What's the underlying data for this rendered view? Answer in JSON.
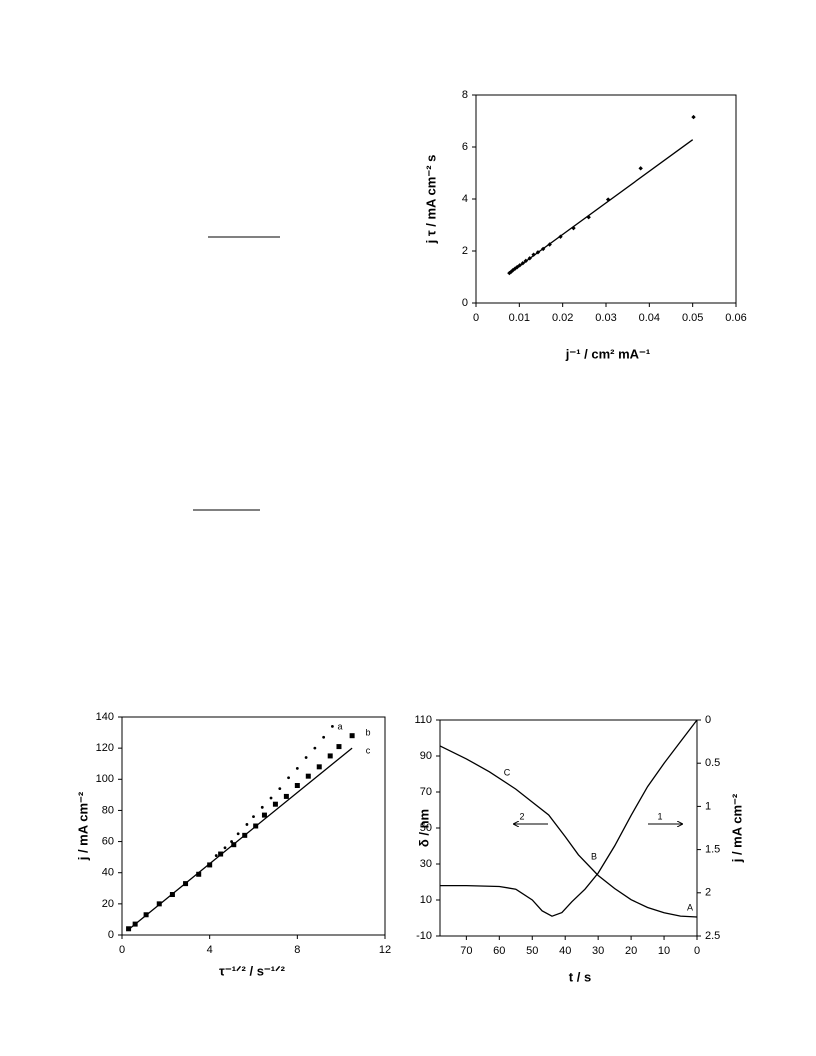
{
  "chart_data": [
    {
      "type": "scatter",
      "xlabel": "j⁻¹  /  cm² mA⁻¹",
      "ylabel": "j τ  /  mA cm⁻² s",
      "xlim": [
        0,
        0.06
      ],
      "ylim": [
        0,
        8
      ],
      "xticks": [
        0,
        0.01,
        0.02,
        0.03,
        0.04,
        0.05,
        0.06
      ],
      "yticks": [
        0,
        2,
        4,
        6,
        8
      ],
      "series": [
        {
          "marker": "diamond",
          "color": "#000000",
          "x": [
            0.0077,
            0.0081,
            0.0085,
            0.009,
            0.0095,
            0.0101,
            0.0108,
            0.0115,
            0.0124,
            0.0133,
            0.0143,
            0.0155,
            0.017,
            0.0195,
            0.0225,
            0.026,
            0.0305,
            0.038,
            0.0502
          ],
          "values": [
            1.15,
            1.2,
            1.26,
            1.32,
            1.38,
            1.45,
            1.53,
            1.62,
            1.72,
            1.86,
            1.95,
            2.08,
            2.25,
            2.55,
            2.88,
            3.3,
            3.98,
            5.18,
            7.15
          ]
        },
        {
          "marker": "line",
          "color": "#000000",
          "x": [
            0.0075,
            0.05
          ],
          "values": [
            1.12,
            6.28
          ]
        }
      ]
    },
    {
      "type": "scatter",
      "xlabel": "τ⁻¹ᐟ²  /  s⁻¹ᐟ²",
      "ylabel": "j  /  mA cm⁻²",
      "xlim": [
        0,
        12
      ],
      "ylim": [
        0,
        140
      ],
      "xticks": [
        0,
        4,
        8,
        12
      ],
      "yticks": [
        0,
        20,
        40,
        60,
        80,
        100,
        120,
        140
      ],
      "series": [
        {
          "name": "a",
          "marker": "dot",
          "color": "#000000",
          "x": [
            0.3,
            0.6,
            1.1,
            1.7,
            2.3,
            2.9,
            3.5,
            4,
            4.3,
            4.7,
            5,
            5.3,
            5.7,
            6,
            6.4,
            6.8,
            7.2,
            7.6,
            8,
            8.4,
            8.8,
            9.2,
            9.6
          ],
          "values": [
            4,
            7,
            13,
            20,
            26,
            33,
            39,
            45,
            51,
            56,
            60,
            65,
            71,
            76,
            82,
            88,
            94,
            101,
            107,
            114,
            120,
            127,
            134
          ]
        },
        {
          "name": "b",
          "marker": "square",
          "color": "#000000",
          "x": [
            0.3,
            0.6,
            1.1,
            1.7,
            2.3,
            2.9,
            3.5,
            4,
            4.5,
            5.1,
            5.6,
            6.1,
            6.5,
            7,
            7.5,
            8,
            8.5,
            9,
            9.5,
            9.9,
            10.5
          ],
          "values": [
            4,
            7,
            13,
            20,
            26,
            33,
            39,
            45,
            52,
            58,
            64,
            70,
            77,
            84,
            89,
            96,
            102,
            108,
            115,
            121,
            128
          ]
        },
        {
          "name": "c",
          "marker": "line",
          "color": "#000000",
          "x": [
            0.3,
            10.5
          ],
          "values": [
            3.5,
            120
          ]
        }
      ]
    },
    {
      "type": "line",
      "xlabel": "t  /  s",
      "ylabel": "δ  /  nm",
      "y2label": "j  /  mA cm⁻²",
      "xlim": [
        78,
        0
      ],
      "ylim": [
        -10,
        110
      ],
      "y2lim": [
        2.5,
        0
      ],
      "xticks": [
        70,
        60,
        50,
        40,
        30,
        20,
        10,
        0
      ],
      "yticks": [
        -10,
        10,
        30,
        50,
        70,
        90,
        110
      ],
      "y2ticks": [
        0,
        0.5,
        1,
        1.5,
        2,
        2.5
      ],
      "annotations": [
        "A",
        "B",
        "C"
      ],
      "series": [
        {
          "name": "1",
          "marker": "line",
          "color": "#000000",
          "x": [
            78,
            70,
            60,
            55,
            50,
            47,
            44,
            41,
            38,
            34,
            30,
            25,
            20,
            15,
            10,
            5,
            0
          ],
          "values": [
            18,
            18,
            17.5,
            16,
            10,
            4,
            1,
            3,
            9,
            16,
            25,
            40,
            57,
            73,
            86,
            98,
            110
          ]
        },
        {
          "name": "2",
          "marker": "line",
          "color": "#000000",
          "axis": "y2",
          "x": [
            78,
            70,
            63,
            55,
            50,
            45,
            40,
            36,
            30,
            25,
            20,
            15,
            10,
            5,
            0
          ],
          "values": [
            0.3,
            0.45,
            0.6,
            0.8,
            0.95,
            1.1,
            1.35,
            1.56,
            1.8,
            1.95,
            2.08,
            2.17,
            2.23,
            2.27,
            2.28
          ]
        }
      ]
    }
  ]
}
